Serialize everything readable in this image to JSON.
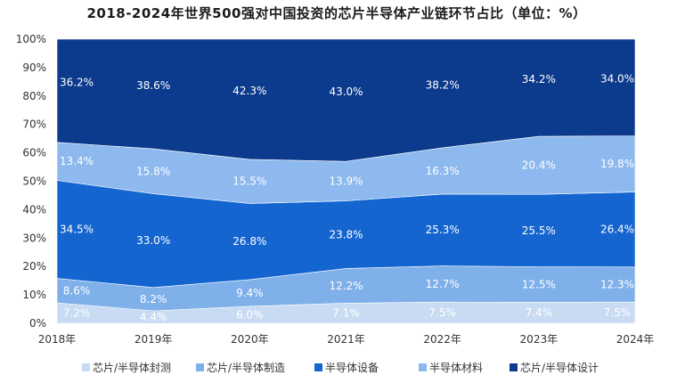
{
  "chart_data": {
    "type": "area",
    "stacked": true,
    "title": "2018-2024年世界500强对中国投资的芯片半导体产业链环节占比（单位：%）",
    "categories": [
      "2018年",
      "2019年",
      "2020年",
      "2021年",
      "2022年",
      "2023年",
      "2024年"
    ],
    "ylim": [
      0,
      100
    ],
    "y_ticks": [
      "0%",
      "10%",
      "20%",
      "30%",
      "40%",
      "50%",
      "60%",
      "70%",
      "80%",
      "90%",
      "100%"
    ],
    "legend_position": "bottom",
    "series": [
      {
        "name": "芯片/半导体封测",
        "color": "#c9dbf3",
        "values": [
          7.2,
          4.4,
          6.0,
          7.1,
          7.5,
          7.4,
          7.5
        ],
        "labels": [
          "7.2%",
          "4.4%",
          "6.0%",
          "7.1%",
          "7.5%",
          "7.4%",
          "7.5%"
        ]
      },
      {
        "name": "芯片/半导体制造",
        "color": "#7fb0ea",
        "values": [
          8.6,
          8.2,
          9.4,
          12.2,
          12.7,
          12.5,
          12.3
        ],
        "labels": [
          "8.6%",
          "8.2%",
          "9.4%",
          "12.2%",
          "12.7%",
          "12.5%",
          "12.3%"
        ]
      },
      {
        "name": "半导体设备",
        "color": "#1565d0",
        "values": [
          34.5,
          33.0,
          26.8,
          23.8,
          25.3,
          25.5,
          26.4
        ],
        "labels": [
          "34.5%",
          "33.0%",
          "26.8%",
          "23.8%",
          "25.3%",
          "25.5%",
          "26.4%"
        ]
      },
      {
        "name": "半导体材料",
        "color": "#8db9ef",
        "values": [
          13.4,
          15.8,
          15.5,
          13.9,
          16.3,
          20.4,
          19.8
        ],
        "labels": [
          "13.4%",
          "15.8%",
          "15.5%",
          "13.9%",
          "16.3%",
          "20.4%",
          "19.8%"
        ]
      },
      {
        "name": "芯片/半导体设计",
        "color": "#0c3a8c",
        "values": [
          36.2,
          38.6,
          42.3,
          43.0,
          38.2,
          34.2,
          34.0
        ],
        "labels": [
          "36.2%",
          "38.6%",
          "42.3%",
          "43.0%",
          "38.2%",
          "34.2%",
          "34.0%"
        ]
      }
    ]
  }
}
